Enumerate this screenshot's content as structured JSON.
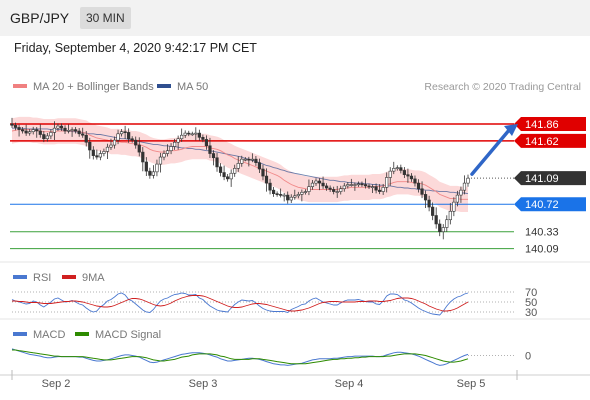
{
  "header": {
    "symbol": "GBP/JPY",
    "timeframe": "30 MIN"
  },
  "datetime": "Friday, September 4, 2020 9:42:17 PM CET",
  "colors": {
    "ma20": "#f08080",
    "ma50": "#2f4f8f",
    "bollinger_fill": "#fcd9d9",
    "resistance": "#e00000",
    "pivot": "#1a73e8",
    "support": "#3aa03a",
    "rsi": "#4a78d0",
    "rsi_9ma": "#d02020",
    "macd": "#4a78d0",
    "macd_signal": "#2e8b00",
    "arrow": "#2f66c7",
    "candle": "#333333"
  },
  "chart_data": [
    {
      "type": "candlestick",
      "name": "price",
      "legend": [
        {
          "label": "MA 20 + Bollinger Bands",
          "color": "#f08080"
        },
        {
          "label": "MA 50",
          "color": "#2f4f8f"
        }
      ],
      "credit": "Research © 2020 Trading Central",
      "ylim": [
        139.9,
        142.2
      ],
      "x_ticks": [
        "Sep 2",
        "Sep 3",
        "Sep 4",
        "Sep 5"
      ],
      "levels": [
        {
          "label": "141.86",
          "value": 141.86,
          "kind": "resistance"
        },
        {
          "label": "141.62",
          "value": 141.62,
          "kind": "resistance"
        },
        {
          "label": "141.09",
          "value": 141.09,
          "kind": "current"
        },
        {
          "label": "140.72",
          "value": 140.72,
          "kind": "pivot"
        },
        {
          "label": "140.33",
          "value": 140.33,
          "kind": "support"
        },
        {
          "label": "140.09",
          "value": 140.09,
          "kind": "support"
        }
      ],
      "close": [
        141.84,
        141.81,
        141.78,
        141.76,
        141.73,
        141.75,
        141.78,
        141.76,
        141.71,
        141.65,
        141.69,
        141.74,
        141.8,
        141.83,
        141.8,
        141.76,
        141.77,
        141.78,
        141.76,
        141.72,
        141.7,
        141.6,
        141.49,
        141.41,
        141.39,
        141.44,
        141.47,
        141.53,
        141.56,
        141.63,
        141.72,
        141.75,
        141.74,
        141.65,
        141.63,
        141.56,
        141.46,
        141.32,
        141.19,
        141.13,
        141.18,
        141.29,
        141.39,
        141.44,
        141.48,
        141.54,
        141.6,
        141.65,
        141.7,
        141.73,
        141.72,
        141.72,
        141.73,
        141.67,
        141.64,
        141.55,
        141.44,
        141.38,
        141.25,
        141.17,
        141.11,
        141.08,
        141.16,
        141.23,
        141.3,
        141.36,
        141.36,
        141.35,
        141.36,
        141.31,
        141.22,
        141.12,
        141.02,
        140.92,
        140.87,
        140.86,
        140.85,
        140.85,
        140.78,
        140.82,
        140.84,
        140.86,
        140.89,
        140.9,
        140.97,
        141.02,
        141.05,
        141.02,
        140.98,
        140.95,
        140.93,
        140.9,
        140.9,
        140.94,
        140.98,
        141.0,
        141.0,
        141.0,
        141.01,
        141.0,
        140.98,
        140.97,
        140.97,
        140.92,
        140.9,
        140.96,
        141.1,
        141.19,
        141.23,
        141.24,
        141.2,
        141.14,
        141.12,
        141.08,
        141.02,
        140.94,
        140.86,
        140.78,
        140.68,
        140.56,
        140.44,
        140.33,
        140.39,
        140.5,
        140.62,
        140.75,
        140.85,
        140.92,
        141.02,
        141.09
      ],
      "ma20": [
        141.76,
        141.77,
        141.78,
        141.78,
        141.78,
        141.78,
        141.77,
        141.77,
        141.76,
        141.75,
        141.75,
        141.75,
        141.75,
        141.76,
        141.76,
        141.76,
        141.76,
        141.76,
        141.76,
        141.75,
        141.74,
        141.73,
        141.7,
        141.68,
        141.66,
        141.65,
        141.64,
        141.63,
        141.61,
        141.61,
        141.61,
        141.6,
        141.6,
        141.59,
        141.58,
        141.58,
        141.57,
        141.55,
        141.53,
        141.5,
        141.48,
        141.47,
        141.46,
        141.46,
        141.47,
        141.48,
        141.48,
        141.49,
        141.5,
        141.52,
        141.53,
        141.54,
        141.54,
        141.54,
        141.54,
        141.54,
        141.52,
        141.51,
        141.5,
        141.48,
        141.45,
        141.42,
        141.4,
        141.37,
        141.35,
        141.33,
        141.31,
        141.29,
        141.27,
        141.25,
        141.23,
        141.21,
        141.19,
        141.17,
        141.15,
        141.13,
        141.1,
        141.06,
        141.03,
        141.0,
        140.98,
        140.96,
        140.95,
        140.94,
        140.93,
        140.93,
        140.93,
        140.93,
        140.93,
        140.93,
        140.93,
        140.93,
        140.93,
        140.94,
        140.95,
        140.95,
        140.96,
        140.96,
        140.96,
        140.96,
        140.96,
        140.96,
        140.97,
        140.97,
        140.97,
        140.98,
        141.0,
        141.01,
        141.03,
        141.04,
        141.04,
        141.04,
        141.04,
        141.03,
        141.02,
        141.02,
        141.01,
        140.99,
        140.96,
        140.93,
        140.9,
        140.86,
        140.84,
        140.82,
        140.8,
        140.8,
        140.8,
        140.79,
        140.79,
        140.79
      ],
      "ma50": [
        141.8,
        141.8,
        141.8,
        141.8,
        141.79,
        141.79,
        141.79,
        141.79,
        141.79,
        141.79,
        141.79,
        141.78,
        141.78,
        141.78,
        141.78,
        141.77,
        141.76,
        141.75,
        141.75,
        141.74,
        141.74,
        141.73,
        141.72,
        141.72,
        141.71,
        141.71,
        141.7,
        141.69,
        141.68,
        141.67,
        141.66,
        141.65,
        141.65,
        141.64,
        141.63,
        141.62,
        141.61,
        141.6,
        141.59,
        141.58,
        141.57,
        141.57,
        141.56,
        141.55,
        141.55,
        141.54,
        141.54,
        141.53,
        141.52,
        141.52,
        141.51,
        141.51,
        141.5,
        141.5,
        141.49,
        141.48,
        141.48,
        141.47,
        141.46,
        141.45,
        141.44,
        141.43,
        141.42,
        141.41,
        141.4,
        141.39,
        141.37,
        141.36,
        141.34,
        141.33,
        141.31,
        141.29,
        141.27,
        141.26,
        141.24,
        141.23,
        141.21,
        141.2,
        141.18,
        141.17,
        141.16,
        141.15,
        141.14,
        141.13,
        141.12,
        141.11,
        141.1,
        141.09,
        141.08,
        141.07,
        141.06,
        141.06,
        141.05,
        141.04,
        141.04,
        141.03,
        141.03,
        141.02,
        141.02,
        141.02,
        141.01,
        141.01,
        141.0,
        141.0,
        140.99,
        140.99,
        140.98,
        140.98,
        140.97,
        140.96,
        140.96,
        140.95,
        140.95,
        140.94,
        140.94,
        140.93,
        140.93,
        140.92,
        140.92,
        140.91,
        140.91,
        140.9,
        140.9,
        140.9,
        140.89,
        140.89,
        140.88,
        140.88,
        140.88,
        140.87
      ],
      "bb_width": 0.18
    },
    {
      "type": "line",
      "name": "rsi",
      "legend": [
        {
          "label": "RSI",
          "color": "#4a78d0"
        },
        {
          "label": "9MA",
          "color": "#d02020"
        }
      ],
      "ylim": [
        20,
        80
      ],
      "levels": [
        {
          "label": "70",
          "value": 70
        },
        {
          "label": "50",
          "value": 50
        },
        {
          "label": "30",
          "value": 30
        }
      ],
      "series": [
        {
          "key": "rsi",
          "values": [
            55,
            52,
            50,
            48,
            46,
            47,
            52,
            50,
            44,
            40,
            45,
            50,
            56,
            58,
            54,
            50,
            51,
            53,
            50,
            46,
            44,
            38,
            33,
            30,
            32,
            40,
            45,
            52,
            55,
            60,
            66,
            68,
            64,
            55,
            52,
            46,
            40,
            34,
            30,
            29,
            35,
            44,
            52,
            56,
            58,
            62,
            65,
            66,
            68,
            67,
            64,
            64,
            65,
            58,
            55,
            48,
            42,
            38,
            34,
            32,
            31,
            30,
            38,
            45,
            50,
            54,
            53,
            52,
            53,
            48,
            42,
            37,
            34,
            32,
            31,
            31,
            31,
            31,
            29,
            35,
            38,
            41,
            45,
            46,
            52,
            56,
            58,
            54,
            50,
            48,
            46,
            44,
            44,
            48,
            52,
            54,
            54,
            54,
            55,
            53,
            51,
            50,
            50,
            46,
            45,
            52,
            62,
            66,
            66,
            65,
            60,
            54,
            52,
            48,
            43,
            38,
            34,
            31,
            28,
            26,
            25,
            24,
            32,
            42,
            50,
            56,
            60,
            62,
            66,
            68
          ]
        },
        {
          "key": "rsi_9ma",
          "values": [
            52,
            52,
            51,
            51,
            50,
            49,
            49,
            49,
            48,
            47,
            47,
            47,
            48,
            49,
            50,
            51,
            51,
            52,
            52,
            51,
            50,
            48,
            46,
            44,
            42,
            41,
            40,
            40,
            41,
            43,
            46,
            49,
            52,
            55,
            57,
            57,
            56,
            54,
            51,
            48,
            45,
            43,
            42,
            43,
            45,
            48,
            52,
            55,
            58,
            60,
            62,
            63,
            63,
            63,
            62,
            60,
            57,
            54,
            51,
            48,
            45,
            42,
            40,
            39,
            39,
            40,
            42,
            44,
            46,
            47,
            47,
            46,
            45,
            43,
            41,
            39,
            37,
            35,
            33,
            32,
            32,
            33,
            34,
            36,
            38,
            41,
            44,
            47,
            49,
            50,
            51,
            51,
            51,
            50,
            50,
            50,
            50,
            50,
            51,
            51,
            51,
            52,
            52,
            52,
            51,
            51,
            52,
            53,
            55,
            57,
            58,
            58,
            58,
            57,
            55,
            52,
            49,
            46,
            42,
            39,
            36,
            34,
            32,
            32,
            33,
            35,
            38,
            42,
            46,
            50
          ]
        }
      ]
    },
    {
      "type": "line",
      "name": "macd",
      "legend": [
        {
          "label": "MACD",
          "color": "#4a78d0"
        },
        {
          "label": "MACD Signal",
          "color": "#2e8b00"
        }
      ],
      "ylim": [
        -0.3,
        0.3
      ],
      "levels": [
        {
          "label": "0",
          "value": 0
        }
      ],
      "series": [
        {
          "key": "macd",
          "values": [
            0.12,
            0.1,
            0.08,
            0.06,
            0.04,
            0.02,
            0.01,
            0.0,
            -0.01,
            -0.03,
            -0.04,
            -0.04,
            -0.03,
            -0.02,
            -0.02,
            -0.02,
            -0.02,
            -0.02,
            -0.02,
            -0.03,
            -0.03,
            -0.05,
            -0.07,
            -0.09,
            -0.1,
            -0.1,
            -0.09,
            -0.08,
            -0.06,
            -0.04,
            -0.02,
            0.0,
            0.01,
            0.01,
            0.0,
            -0.01,
            -0.03,
            -0.06,
            -0.09,
            -0.12,
            -0.13,
            -0.12,
            -0.1,
            -0.08,
            -0.06,
            -0.04,
            -0.02,
            0.0,
            0.02,
            0.03,
            0.04,
            0.05,
            0.05,
            0.05,
            0.04,
            0.03,
            0.01,
            -0.01,
            -0.03,
            -0.06,
            -0.08,
            -0.1,
            -0.1,
            -0.09,
            -0.08,
            -0.07,
            -0.06,
            -0.05,
            -0.05,
            -0.06,
            -0.07,
            -0.09,
            -0.11,
            -0.13,
            -0.15,
            -0.16,
            -0.17,
            -0.17,
            -0.18,
            -0.17,
            -0.16,
            -0.15,
            -0.14,
            -0.12,
            -0.1,
            -0.08,
            -0.07,
            -0.06,
            -0.06,
            -0.06,
            -0.06,
            -0.05,
            -0.05,
            -0.04,
            -0.03,
            -0.02,
            -0.02,
            -0.01,
            -0.01,
            -0.01,
            -0.01,
            -0.01,
            -0.01,
            -0.02,
            -0.02,
            -0.01,
            0.01,
            0.03,
            0.05,
            0.06,
            0.06,
            0.05,
            0.04,
            0.03,
            0.01,
            -0.01,
            -0.04,
            -0.07,
            -0.1,
            -0.13,
            -0.16,
            -0.18,
            -0.17,
            -0.15,
            -0.12,
            -0.09,
            -0.06,
            -0.03,
            0.0,
            0.02
          ]
        },
        {
          "key": "macd_signal",
          "values": [
            0.1,
            0.1,
            0.09,
            0.08,
            0.07,
            0.06,
            0.05,
            0.04,
            0.03,
            0.02,
            0.01,
            0.0,
            -0.01,
            -0.01,
            -0.02,
            -0.02,
            -0.02,
            -0.02,
            -0.02,
            -0.02,
            -0.02,
            -0.03,
            -0.04,
            -0.05,
            -0.06,
            -0.07,
            -0.08,
            -0.08,
            -0.08,
            -0.07,
            -0.06,
            -0.05,
            -0.04,
            -0.03,
            -0.02,
            -0.02,
            -0.02,
            -0.03,
            -0.04,
            -0.06,
            -0.08,
            -0.09,
            -0.1,
            -0.1,
            -0.09,
            -0.08,
            -0.07,
            -0.05,
            -0.03,
            -0.02,
            -0.01,
            0.01,
            0.02,
            0.03,
            0.03,
            0.03,
            0.03,
            0.02,
            0.01,
            -0.01,
            -0.02,
            -0.04,
            -0.06,
            -0.07,
            -0.07,
            -0.07,
            -0.07,
            -0.07,
            -0.06,
            -0.06,
            -0.06,
            -0.07,
            -0.08,
            -0.09,
            -0.1,
            -0.11,
            -0.12,
            -0.13,
            -0.14,
            -0.15,
            -0.15,
            -0.15,
            -0.15,
            -0.15,
            -0.14,
            -0.13,
            -0.12,
            -0.11,
            -0.1,
            -0.09,
            -0.08,
            -0.07,
            -0.07,
            -0.06,
            -0.06,
            -0.05,
            -0.05,
            -0.04,
            -0.04,
            -0.03,
            -0.03,
            -0.02,
            -0.02,
            -0.02,
            -0.02,
            -0.02,
            -0.01,
            -0.01,
            0.0,
            0.01,
            0.02,
            0.03,
            0.03,
            0.03,
            0.03,
            0.02,
            0.01,
            0.0,
            -0.02,
            -0.04,
            -0.06,
            -0.08,
            -0.1,
            -0.11,
            -0.12,
            -0.12,
            -0.11,
            -0.1,
            -0.08,
            -0.06
          ]
        }
      ]
    }
  ]
}
